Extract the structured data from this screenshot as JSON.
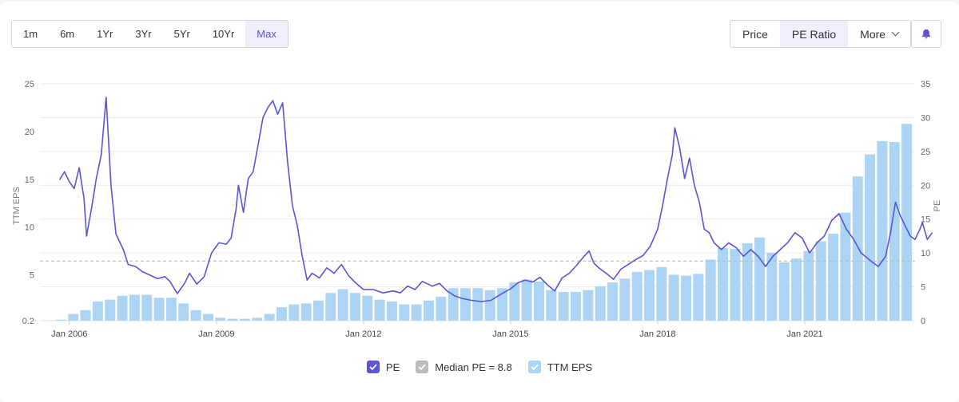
{
  "toolbar": {
    "ranges": [
      "1m",
      "6m",
      "1Yr",
      "3Yr",
      "5Yr",
      "10Yr",
      "Max"
    ],
    "active_range": "Max",
    "metrics": [
      {
        "label": "Price",
        "active": false
      },
      {
        "label": "PE Ratio",
        "active": true
      },
      {
        "label": "More",
        "active": false
      }
    ],
    "bell_icon": "bell-icon"
  },
  "legend": {
    "pe": "PE",
    "median": "Median PE = 8.8",
    "eps": "TTM EPS"
  },
  "colors": {
    "pe_line": "#5b54d6",
    "eps_bar": "#acd5f5",
    "median_line": "#bdbdbd",
    "pe_checkbox": "#5b54d6",
    "median_checkbox": "#bdbdbd",
    "eps_checkbox": "#acd5f5"
  },
  "chart_data": {
    "type": "bar+line",
    "ylabel_left": "TTM EPS",
    "ylabel_right": "PE",
    "left_ticks": [
      "25",
      "20",
      "15",
      "10",
      "5",
      "0.2"
    ],
    "left_axis": {
      "top": 25,
      "bottom": 0.2
    },
    "right_ticks": [
      "35",
      "30",
      "25",
      "20",
      "15",
      "10",
      "5",
      "0"
    ],
    "right_axis": {
      "min": 0,
      "max": 35
    },
    "x_ticks": [
      "Jan 2006",
      "Jan 2009",
      "Jan 2012",
      "Jan 2015",
      "Jan 2018",
      "Jan 2021"
    ],
    "x_axis": {
      "start": 2005.4,
      "end": 2023.25
    },
    "median_pe": 8.8,
    "eps_bars": [
      {
        "x": 2005.83,
        "v": 0.3
      },
      {
        "x": 2006.08,
        "v": 0.9
      },
      {
        "x": 2006.33,
        "v": 1.3
      },
      {
        "x": 2006.58,
        "v": 2.2
      },
      {
        "x": 2006.83,
        "v": 2.4
      },
      {
        "x": 2007.08,
        "v": 2.8
      },
      {
        "x": 2007.33,
        "v": 2.9
      },
      {
        "x": 2007.58,
        "v": 2.9
      },
      {
        "x": 2007.83,
        "v": 2.6
      },
      {
        "x": 2008.08,
        "v": 2.6
      },
      {
        "x": 2008.33,
        "v": 2.0
      },
      {
        "x": 2008.58,
        "v": 1.3
      },
      {
        "x": 2008.83,
        "v": 0.9
      },
      {
        "x": 2009.08,
        "v": 0.5
      },
      {
        "x": 2009.33,
        "v": 0.4
      },
      {
        "x": 2009.58,
        "v": 0.4
      },
      {
        "x": 2009.83,
        "v": 0.5
      },
      {
        "x": 2010.08,
        "v": 0.9
      },
      {
        "x": 2010.33,
        "v": 1.6
      },
      {
        "x": 2010.58,
        "v": 1.9
      },
      {
        "x": 2010.83,
        "v": 2.0
      },
      {
        "x": 2011.08,
        "v": 2.3
      },
      {
        "x": 2011.33,
        "v": 3.1
      },
      {
        "x": 2011.58,
        "v": 3.5
      },
      {
        "x": 2011.83,
        "v": 3.1
      },
      {
        "x": 2012.08,
        "v": 2.8
      },
      {
        "x": 2012.33,
        "v": 2.4
      },
      {
        "x": 2012.58,
        "v": 2.2
      },
      {
        "x": 2012.83,
        "v": 1.9
      },
      {
        "x": 2013.08,
        "v": 1.9
      },
      {
        "x": 2013.33,
        "v": 2.3
      },
      {
        "x": 2013.58,
        "v": 2.7
      },
      {
        "x": 2013.83,
        "v": 3.6
      },
      {
        "x": 2014.08,
        "v": 3.6
      },
      {
        "x": 2014.33,
        "v": 3.6
      },
      {
        "x": 2014.58,
        "v": 3.4
      },
      {
        "x": 2014.83,
        "v": 3.6
      },
      {
        "x": 2015.08,
        "v": 4.2
      },
      {
        "x": 2015.33,
        "v": 4.5
      },
      {
        "x": 2015.58,
        "v": 4.3
      },
      {
        "x": 2015.83,
        "v": 3.4
      },
      {
        "x": 2016.08,
        "v": 3.2
      },
      {
        "x": 2016.33,
        "v": 3.2
      },
      {
        "x": 2016.58,
        "v": 3.4
      },
      {
        "x": 2016.83,
        "v": 3.8
      },
      {
        "x": 2017.08,
        "v": 4.2
      },
      {
        "x": 2017.33,
        "v": 4.6
      },
      {
        "x": 2017.58,
        "v": 5.3
      },
      {
        "x": 2017.83,
        "v": 5.5
      },
      {
        "x": 2018.08,
        "v": 5.8
      },
      {
        "x": 2018.33,
        "v": 5.0
      },
      {
        "x": 2018.58,
        "v": 4.9
      },
      {
        "x": 2018.83,
        "v": 5.1
      },
      {
        "x": 2019.08,
        "v": 6.6
      },
      {
        "x": 2019.33,
        "v": 7.8
      },
      {
        "x": 2019.58,
        "v": 7.7
      },
      {
        "x": 2019.83,
        "v": 8.3
      },
      {
        "x": 2020.08,
        "v": 8.9
      },
      {
        "x": 2020.33,
        "v": 7.3
      },
      {
        "x": 2020.58,
        "v": 6.3
      },
      {
        "x": 2020.83,
        "v": 6.7
      },
      {
        "x": 2021.08,
        "v": 7.5
      },
      {
        "x": 2021.33,
        "v": 8.5
      },
      {
        "x": 2021.58,
        "v": 9.3
      },
      {
        "x": 2021.83,
        "v": 11.5
      },
      {
        "x": 2022.08,
        "v": 15.3
      },
      {
        "x": 2022.33,
        "v": 17.6
      },
      {
        "x": 2022.58,
        "v": 19.0
      },
      {
        "x": 2022.83,
        "v": 18.9
      },
      {
        "x": 2023.08,
        "v": 20.8
      }
    ],
    "pe_line": [
      [
        2005.8,
        20.8
      ],
      [
        2005.9,
        22.0
      ],
      [
        2006.0,
        20.5
      ],
      [
        2006.1,
        19.5
      ],
      [
        2006.2,
        22.6
      ],
      [
        2006.3,
        18.0
      ],
      [
        2006.35,
        12.5
      ],
      [
        2006.45,
        16.5
      ],
      [
        2006.55,
        21.0
      ],
      [
        2006.65,
        24.5
      ],
      [
        2006.75,
        33.0
      ],
      [
        2006.85,
        20.0
      ],
      [
        2006.95,
        12.8
      ],
      [
        2007.1,
        10.5
      ],
      [
        2007.2,
        8.3
      ],
      [
        2007.35,
        8.0
      ],
      [
        2007.5,
        7.2
      ],
      [
        2007.65,
        6.7
      ],
      [
        2007.8,
        6.2
      ],
      [
        2007.95,
        6.5
      ],
      [
        2008.05,
        5.8
      ],
      [
        2008.2,
        4.0
      ],
      [
        2008.35,
        5.5
      ],
      [
        2008.45,
        7.0
      ],
      [
        2008.6,
        5.4
      ],
      [
        2008.75,
        6.5
      ],
      [
        2008.9,
        10.0
      ],
      [
        2009.05,
        11.5
      ],
      [
        2009.2,
        11.3
      ],
      [
        2009.3,
        12.2
      ],
      [
        2009.4,
        16.5
      ],
      [
        2009.45,
        20.0
      ],
      [
        2009.55,
        16.0
      ],
      [
        2009.65,
        21.0
      ],
      [
        2009.75,
        22.0
      ],
      [
        2009.85,
        26.0
      ],
      [
        2009.95,
        30.0
      ],
      [
        2010.05,
        31.5
      ],
      [
        2010.15,
        32.5
      ],
      [
        2010.25,
        30.5
      ],
      [
        2010.35,
        32.2
      ],
      [
        2010.45,
        23.5
      ],
      [
        2010.55,
        17.0
      ],
      [
        2010.65,
        14.0
      ],
      [
        2010.75,
        9.5
      ],
      [
        2010.85,
        6.0
      ],
      [
        2010.95,
        7.0
      ],
      [
        2011.1,
        6.3
      ],
      [
        2011.25,
        7.8
      ],
      [
        2011.4,
        7.0
      ],
      [
        2011.55,
        8.3
      ],
      [
        2011.7,
        6.6
      ],
      [
        2011.85,
        5.5
      ],
      [
        2012.0,
        4.6
      ],
      [
        2012.2,
        4.6
      ],
      [
        2012.4,
        4.1
      ],
      [
        2012.6,
        4.4
      ],
      [
        2012.75,
        4.1
      ],
      [
        2012.9,
        5.1
      ],
      [
        2013.05,
        4.6
      ],
      [
        2013.2,
        5.8
      ],
      [
        2013.4,
        5.1
      ],
      [
        2013.55,
        5.5
      ],
      [
        2013.7,
        4.4
      ],
      [
        2013.85,
        3.7
      ],
      [
        2014.0,
        3.3
      ],
      [
        2014.2,
        3.0
      ],
      [
        2014.4,
        2.8
      ],
      [
        2014.6,
        3.0
      ],
      [
        2014.8,
        3.9
      ],
      [
        2015.0,
        4.7
      ],
      [
        2015.15,
        5.6
      ],
      [
        2015.3,
        6.0
      ],
      [
        2015.45,
        5.7
      ],
      [
        2015.6,
        6.4
      ],
      [
        2015.75,
        5.3
      ],
      [
        2015.9,
        4.4
      ],
      [
        2016.05,
        6.3
      ],
      [
        2016.2,
        7.0
      ],
      [
        2016.35,
        8.2
      ],
      [
        2016.5,
        9.5
      ],
      [
        2016.6,
        10.3
      ],
      [
        2016.7,
        8.5
      ],
      [
        2016.8,
        7.8
      ],
      [
        2016.95,
        7.0
      ],
      [
        2017.1,
        6.1
      ],
      [
        2017.25,
        7.6
      ],
      [
        2017.4,
        8.3
      ],
      [
        2017.55,
        9.0
      ],
      [
        2017.7,
        9.6
      ],
      [
        2017.85,
        11.0
      ],
      [
        2018.0,
        13.5
      ],
      [
        2018.1,
        17.0
      ],
      [
        2018.2,
        21.0
      ],
      [
        2018.3,
        24.5
      ],
      [
        2018.35,
        28.5
      ],
      [
        2018.45,
        25.5
      ],
      [
        2018.55,
        21.0
      ],
      [
        2018.65,
        24.0
      ],
      [
        2018.75,
        20.0
      ],
      [
        2018.85,
        17.5
      ],
      [
        2018.95,
        13.5
      ],
      [
        2019.05,
        13.0
      ],
      [
        2019.15,
        11.5
      ],
      [
        2019.3,
        10.5
      ],
      [
        2019.45,
        11.5
      ],
      [
        2019.6,
        10.8
      ],
      [
        2019.75,
        9.5
      ],
      [
        2019.9,
        10.5
      ],
      [
        2020.05,
        9.5
      ],
      [
        2020.2,
        8.0
      ],
      [
        2020.35,
        9.5
      ],
      [
        2020.5,
        10.5
      ],
      [
        2020.65,
        11.5
      ],
      [
        2020.8,
        13.0
      ],
      [
        2020.95,
        12.2
      ],
      [
        2021.1,
        10.0
      ],
      [
        2021.25,
        11.5
      ],
      [
        2021.4,
        12.5
      ],
      [
        2021.55,
        14.8
      ],
      [
        2021.7,
        15.8
      ],
      [
        2021.85,
        13.5
      ],
      [
        2022.0,
        12.0
      ],
      [
        2022.15,
        10.0
      ],
      [
        2022.35,
        8.8
      ],
      [
        2022.5,
        8.0
      ],
      [
        2022.65,
        9.5
      ],
      [
        2022.75,
        13.0
      ],
      [
        2022.85,
        17.5
      ],
      [
        2022.95,
        15.5
      ],
      [
        2023.05,
        14.0
      ],
      [
        2023.15,
        12.5
      ],
      [
        2023.25,
        12.0
      ],
      [
        2023.35,
        13.5
      ],
      [
        2023.4,
        14.5
      ],
      [
        2023.5,
        12.0
      ],
      [
        2023.6,
        13.0
      ]
    ]
  }
}
